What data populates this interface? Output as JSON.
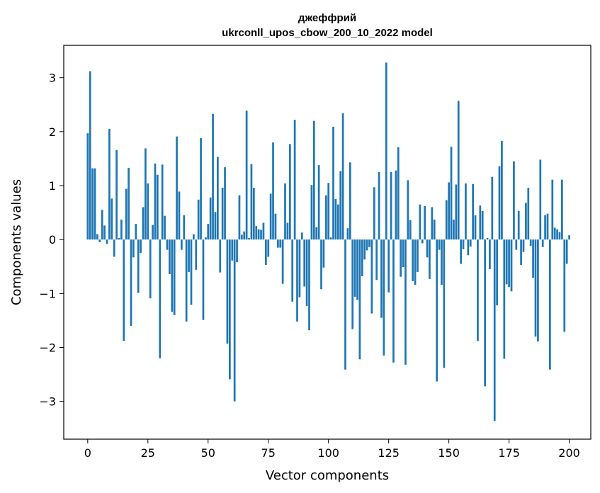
{
  "chart_data": {
    "type": "bar",
    "title_line1": "джеффрий",
    "title_line2": "ukrconll_upos_cbow_200_10_2022 model",
    "xlabel": "Vector components",
    "ylabel": "Components values",
    "xlim": [
      -9.95,
      208.95
    ],
    "ylim": [
      -3.7,
      3.6
    ],
    "xticks": [
      0,
      25,
      50,
      75,
      100,
      125,
      150,
      175,
      200
    ],
    "xtick_labels": [
      "0",
      "25",
      "50",
      "75",
      "100",
      "125",
      "150",
      "175",
      "200"
    ],
    "yticks": [
      -3,
      -2,
      -1,
      0,
      1,
      2,
      3
    ],
    "ytick_labels": [
      "−3",
      "−2",
      "−1",
      "0",
      "1",
      "2",
      "3"
    ],
    "bar_color": "#1f77b4",
    "grid": false,
    "values": [
      1.97,
      3.12,
      1.32,
      1.32,
      0.1,
      -0.05,
      0.55,
      0.26,
      -0.08,
      2.05,
      0.76,
      -0.32,
      1.66,
      0.03,
      0.37,
      -1.88,
      0.94,
      1.33,
      -1.6,
      -0.33,
      0.29,
      -0.99,
      -0.25,
      0.6,
      1.69,
      1.04,
      -1.09,
      0.27,
      1.41,
      1.2,
      -2.2,
      1.39,
      0.44,
      -0.19,
      -0.64,
      -1.34,
      -1.4,
      1.91,
      0.89,
      -0.19,
      0.45,
      -1.52,
      -0.6,
      -1.21,
      0.1,
      -0.56,
      0.74,
      1.88,
      -1.49,
      0.04,
      0.29,
      0.78,
      2.33,
      0.51,
      1.53,
      -0.61,
      0.96,
      1.34,
      -1.93,
      -2.59,
      -0.39,
      -3.0,
      -0.42,
      0.82,
      0.09,
      0.15,
      2.39,
      0.03,
      1.4,
      0.96,
      0.25,
      0.19,
      0.18,
      0.31,
      -0.47,
      -0.32,
      0.85,
      1.8,
      0.48,
      -0.15,
      -0.15,
      -0.82,
      1.04,
      0.31,
      1.77,
      -1.15,
      2.22,
      -1.52,
      -1.07,
      0.13,
      -0.87,
      -1.23,
      -1.68,
      1.01,
      2.2,
      0.23,
      1.38,
      -0.92,
      -0.52,
      0.82,
      1.05,
      0.04,
      2.09,
      0.75,
      0.65,
      1.27,
      2.34,
      -2.41,
      0.21,
      1.43,
      -1.66,
      -1.06,
      -1.12,
      -2.22,
      -0.68,
      -0.37,
      -0.2,
      -0.14,
      -1.37,
      0.97,
      -0.75,
      1.25,
      -1.45,
      -2.15,
      3.28,
      -0.98,
      1.25,
      -2.28,
      1.28,
      1.71,
      -0.69,
      -0.51,
      -2.32,
      1.1,
      0.36,
      -0.77,
      -0.84,
      -0.6,
      0.65,
      -0.07,
      0.62,
      -0.33,
      -0.73,
      0.6,
      0.37,
      -2.63,
      -0.19,
      -0.84,
      -2.38,
      0.73,
      1.06,
      1.72,
      0.37,
      1.02,
      2.57,
      -0.45,
      -0.18,
      1.04,
      -0.29,
      -0.13,
      1.03,
      0.45,
      -1.88,
      0.63,
      0.53,
      -2.72,
      0.03,
      -0.55,
      1.16,
      -3.36,
      -1.22,
      1.36,
      1.83,
      -2.21,
      -0.83,
      -0.88,
      -0.96,
      1.45,
      -0.19,
      0.53,
      -0.47,
      -0.23,
      0.68,
      0.96,
      -0.12,
      -0.71,
      -1.8,
      -1.89,
      1.48,
      -0.14,
      0.45,
      0.48,
      -2.41,
      1.11,
      0.22,
      0.19,
      0.14,
      1.11,
      -1.71,
      -0.45,
      0.08
    ]
  }
}
